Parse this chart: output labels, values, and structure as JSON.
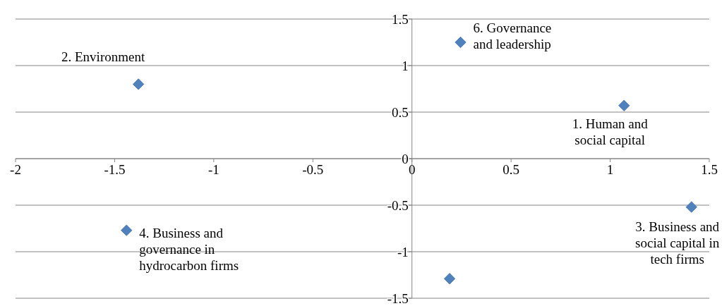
{
  "chart_data": {
    "type": "scatter",
    "x": [
      1.07,
      -1.38,
      1.41,
      -1.44,
      0.19,
      0.245
    ],
    "series": [
      {
        "color": "#4f81bd",
        "values": [
          0.57,
          0.8,
          -0.52,
          -0.77,
          -1.29,
          1.25
        ]
      }
    ],
    "xlim": [
      -2,
      1.5
    ],
    "xticks": [
      -2,
      -1.5,
      -1,
      -0.5,
      0,
      0.5,
      1,
      1.5
    ],
    "ylim": [
      -1.5,
      1.5
    ],
    "yticks": [
      -1.5,
      -1,
      -0.5,
      0,
      0.5,
      1,
      1.5
    ],
    "grid": "y",
    "marker": "diamond",
    "annotations": [
      {
        "text": "1. Human and social capital",
        "x": 1.07,
        "y": 0.57
      },
      {
        "text": "2. Environment",
        "x": -1.38,
        "y": 0.8
      },
      {
        "text": "3. Business and social capital in tech firms",
        "x": 1.41,
        "y": -0.52
      },
      {
        "text": "4. Business and governance in hydrocarbon firms",
        "x": -1.44,
        "y": -0.77
      },
      {
        "text": "6. Governance and leadership",
        "x": 0.245,
        "y": 1.25
      }
    ]
  }
}
